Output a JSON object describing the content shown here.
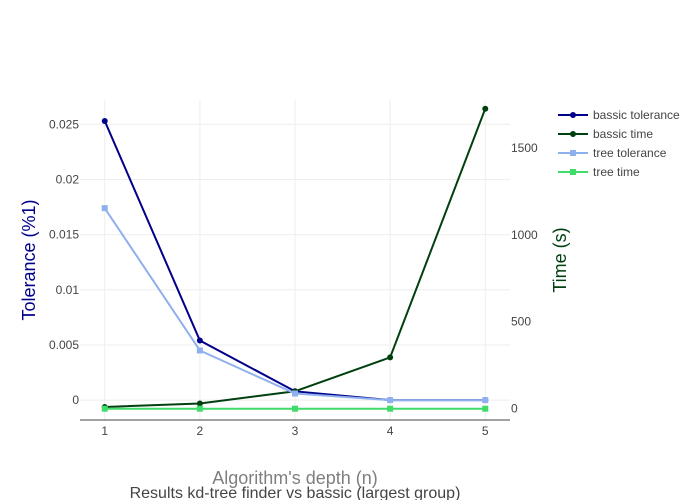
{
  "chart_data": {
    "type": "line",
    "title": "Results kd-tree finder vs bassic (largest group)",
    "xlabel": "Algorithm's depth (n)",
    "ylabel_left": "Tolerance (%1)",
    "ylabel_right": "Time (s)",
    "x": [
      1,
      2,
      3,
      4,
      5
    ],
    "xticks": [
      "1",
      "2",
      "3",
      "4",
      "5"
    ],
    "xlim": [
      0.74,
      5.26
    ],
    "ylim_left": [
      -0.0018,
      0.0272
    ],
    "ylim_right": [
      -65,
      1775
    ],
    "yticks_left": [
      "0",
      "0.005",
      "0.01",
      "0.015",
      "0.02",
      "0.025"
    ],
    "yticks_left_values": [
      0,
      0.005,
      0.01,
      0.015,
      0.02,
      0.025
    ],
    "yticks_right": [
      "0",
      "500",
      "1000",
      "1500"
    ],
    "yticks_right_values": [
      0,
      500,
      1000,
      1500
    ],
    "grid": true,
    "legend_position": "top-right",
    "series": [
      {
        "name": "bassic tolerance",
        "axis": "left",
        "color": "#00008b",
        "marker": "circle",
        "values": [
          0.0253,
          0.0054,
          0.0008,
          0.0,
          0.0
        ]
      },
      {
        "name": "bassic time",
        "axis": "right",
        "color": "#004010",
        "marker": "circle",
        "values": [
          10,
          30,
          100,
          295,
          1725
        ]
      },
      {
        "name": "tree tolerance",
        "axis": "left",
        "color": "#8fb0ee",
        "marker": "square",
        "values": [
          0.0174,
          0.0045,
          0.0006,
          0.0,
          0.0
        ]
      },
      {
        "name": "tree time",
        "axis": "right",
        "color": "#3fdc6a",
        "marker": "square",
        "values": [
          0,
          0,
          0,
          0,
          0
        ]
      }
    ]
  }
}
